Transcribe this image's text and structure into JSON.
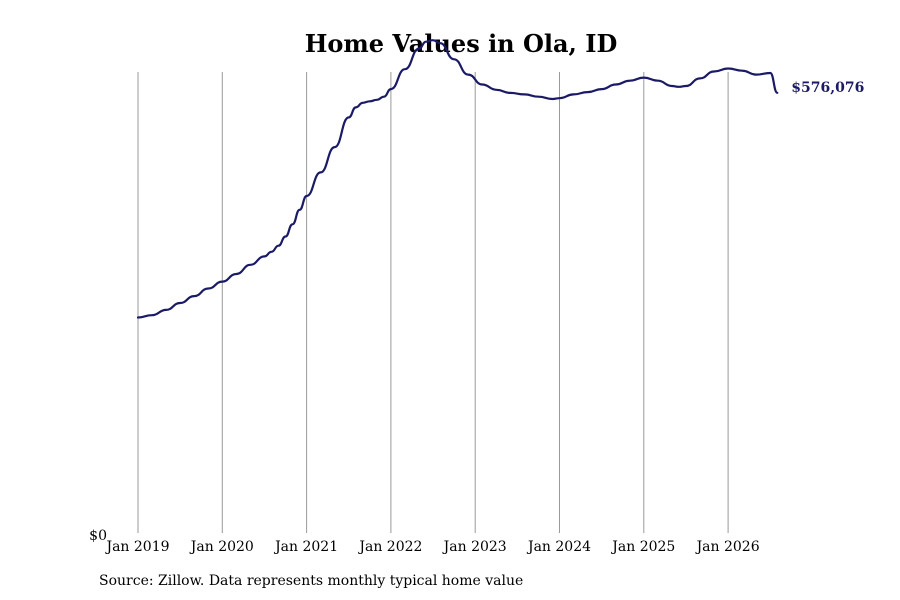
{
  "chart_data": {
    "type": "line",
    "title": "Home Values in Ola, ID",
    "xlabel": "",
    "ylabel": "",
    "y_tick_labels": [
      "$0"
    ],
    "x_tick_labels": [
      "Jan 2019",
      "Jan 2020",
      "Jan 2021",
      "Jan 2022",
      "Jan 2023",
      "Jan 2024",
      "Jan 2025",
      "Jan 2026"
    ],
    "x_ticks": [
      "2019-01",
      "2020-01",
      "2021-01",
      "2022-01",
      "2023-01",
      "2024-01",
      "2025-01",
      "2026-01"
    ],
    "ylim": [
      0,
      640000
    ],
    "x_range": [
      "2019-01",
      "2026-08"
    ],
    "grid": "vertical",
    "line_color": "#1a1a66",
    "end_label": "$576,076",
    "series": [
      {
        "x": [
          "2019-01",
          "2019-03",
          "2019-05",
          "2019-07",
          "2019-09",
          "2019-11",
          "2020-01",
          "2020-03",
          "2020-05",
          "2020-07",
          "2020-08",
          "2020-09",
          "2020-10",
          "2020-11",
          "2020-12",
          "2021-01",
          "2021-03",
          "2021-05",
          "2021-07",
          "2021-08",
          "2021-09",
          "2021-10",
          "2021-11",
          "2021-12",
          "2022-01",
          "2022-03",
          "2022-05",
          "2022-06",
          "2022-07",
          "2022-08",
          "2022-10",
          "2022-12",
          "2023-02",
          "2023-04",
          "2023-06",
          "2023-08",
          "2023-10",
          "2023-12",
          "2024-01",
          "2024-03",
          "2024-05",
          "2024-07",
          "2024-09",
          "2024-11",
          "2025-01",
          "2025-03",
          "2025-05",
          "2025-06",
          "2025-07",
          "2025-09",
          "2025-11",
          "2026-01",
          "2026-03",
          "2026-05",
          "2026-07",
          "2026-08"
        ],
        "values": [
          282000,
          285000,
          292000,
          301000,
          310000,
          320000,
          329000,
          339000,
          351000,
          362000,
          368000,
          376000,
          388000,
          404000,
          423000,
          441000,
          472000,
          505000,
          544000,
          557000,
          563000,
          565000,
          567000,
          571000,
          581000,
          607000,
          634000,
          643000,
          645000,
          641000,
          620000,
          600000,
          587000,
          580000,
          576000,
          574000,
          571000,
          568000,
          569000,
          574000,
          577000,
          581000,
          587000,
          592000,
          596000,
          592000,
          585000,
          584000,
          585000,
          595000,
          604000,
          608000,
          605000,
          600000,
          602000,
          576076
        ]
      }
    ]
  },
  "source_note": "Source: Zillow. Data represents monthly typical home value"
}
